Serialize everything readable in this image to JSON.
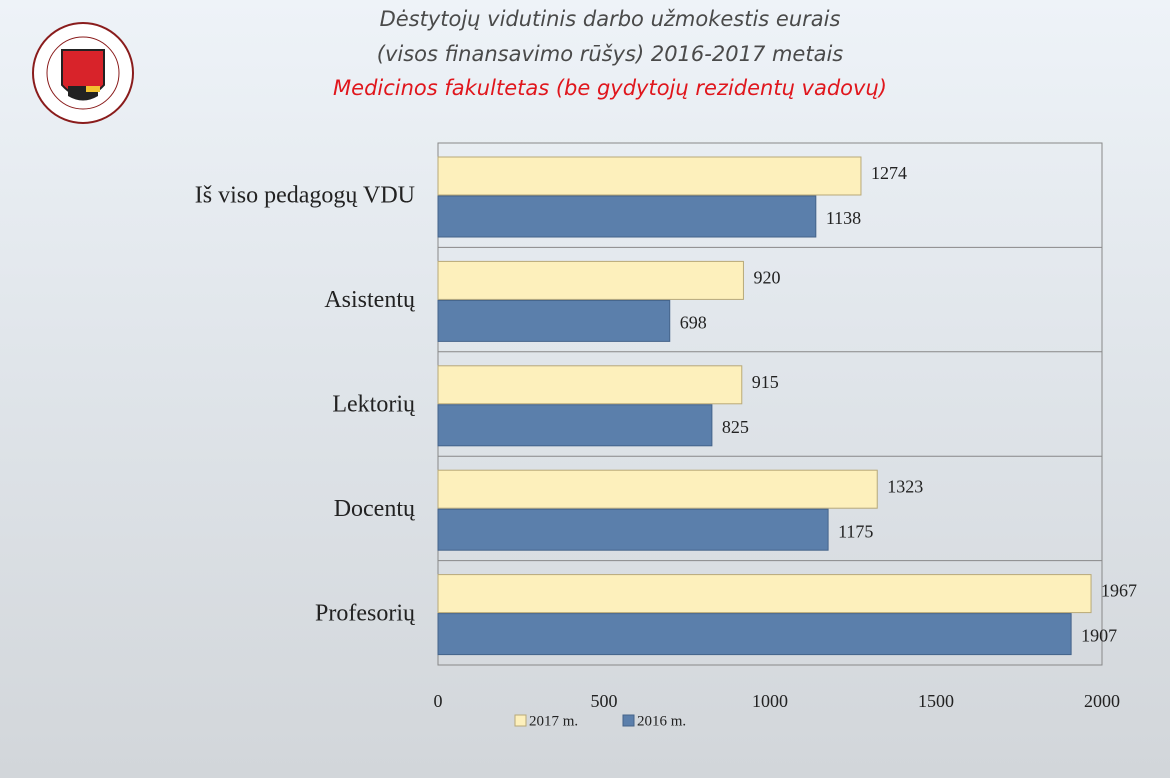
{
  "chart_data": {
    "type": "bar",
    "orientation": "horizontal",
    "title": "Dėstytojų vidutinis darbo užmokestis eurais",
    "subtitle": "(visos finansavimo rūšys) 2016-2017 metais",
    "subtitle2": "Medicinos fakultetas (be gydytojų rezidentų vadovų)",
    "categories": [
      "Iš viso pedagogų VDU",
      "Asistentų",
      "Lektorių",
      "Docentų",
      "Profesorių"
    ],
    "series": [
      {
        "name": "2017 m.",
        "color": "#fdf0bc",
        "values": [
          1274,
          920,
          915,
          1323,
          1967
        ]
      },
      {
        "name": "2016 m.",
        "color": "#5b7fab",
        "values": [
          1138,
          698,
          825,
          1175,
          1907
        ]
      }
    ],
    "xlim": [
      0,
      2000
    ],
    "xticks": [
      0,
      500,
      1000,
      1500,
      2000
    ],
    "legend": "bottom"
  }
}
